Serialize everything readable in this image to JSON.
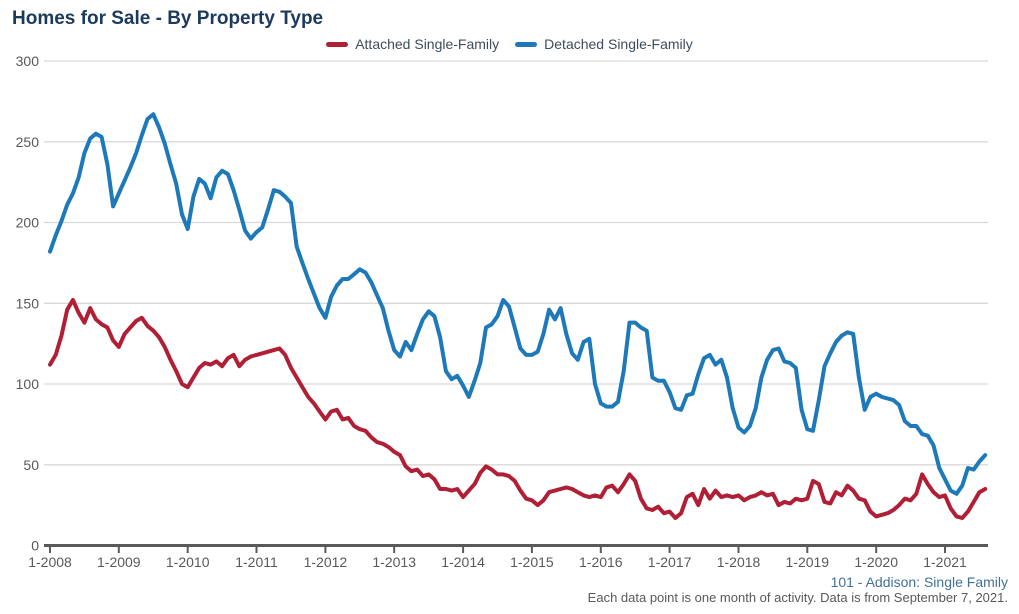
{
  "header": {
    "title": "Homes for Sale - By Property Type"
  },
  "legend": {
    "items": [
      {
        "label": "Attached Single-Family",
        "color": "#b01f35"
      },
      {
        "label": "Detached Single-Family",
        "color": "#1e79b9"
      }
    ]
  },
  "footer": {
    "listing": "101 - Addison: Single Family",
    "note": "Each data point is one month of activity. Data is from September 7, 2021."
  },
  "chart_data": {
    "type": "line",
    "title": "Homes for Sale - By Property Type",
    "xlabel": "",
    "ylabel": "",
    "ylim": [
      0,
      300
    ],
    "y_ticks": [
      0,
      50,
      100,
      150,
      200,
      250,
      300
    ],
    "grid": "horizontal",
    "legend_position": "top",
    "x_unit": "month",
    "x_start": "1-2008",
    "x_end": "8-2021",
    "x_tick_labels": [
      "1-2008",
      "1-2009",
      "1-2010",
      "1-2011",
      "1-2012",
      "1-2013",
      "1-2014",
      "1-2015",
      "1-2016",
      "1-2017",
      "1-2018",
      "1-2019",
      "1-2020",
      "1-2021"
    ],
    "series": [
      {
        "name": "Attached Single-Family",
        "color": "#b01f35",
        "values": [
          112,
          118,
          130,
          146,
          152,
          144,
          138,
          147,
          140,
          137,
          135,
          127,
          123,
          131,
          135,
          139,
          141,
          136,
          133,
          129,
          123,
          115,
          108,
          100,
          98,
          104,
          110,
          113,
          112,
          114,
          111,
          116,
          118,
          111,
          115,
          117,
          118,
          119,
          120,
          121,
          122,
          118,
          110,
          104,
          98,
          92,
          88,
          83,
          78,
          83,
          84,
          78,
          79,
          74,
          72,
          71,
          67,
          64,
          63,
          61,
          58,
          56,
          49,
          46,
          47,
          43,
          44,
          41,
          35,
          35,
          34,
          35,
          30,
          34,
          38,
          45,
          49,
          47,
          44,
          44,
          43,
          40,
          34,
          29,
          28,
          25,
          28,
          33,
          34,
          35,
          36,
          35,
          33,
          31,
          30,
          31,
          30,
          36,
          37,
          33,
          38,
          44,
          40,
          29,
          23,
          22,
          24,
          20,
          21,
          17,
          20,
          30,
          32,
          25,
          35,
          29,
          34,
          30,
          31,
          30,
          31,
          28,
          30,
          31,
          33,
          31,
          32,
          25,
          27,
          26,
          29,
          28,
          29,
          40,
          38,
          27,
          26,
          33,
          31,
          37,
          34,
          29,
          28,
          21,
          18,
          19,
          20,
          22,
          25,
          29,
          28,
          32,
          44,
          38,
          33,
          30,
          31,
          23,
          18,
          17,
          21,
          27,
          33,
          35
        ]
      },
      {
        "name": "Detached Single-Family",
        "color": "#1e79b9",
        "values": [
          182,
          192,
          201,
          211,
          218,
          228,
          243,
          252,
          255,
          253,
          236,
          210,
          218,
          226,
          234,
          243,
          254,
          264,
          267,
          259,
          249,
          236,
          224,
          205,
          196,
          216,
          227,
          224,
          215,
          228,
          232,
          230,
          220,
          208,
          195,
          190,
          194,
          197,
          208,
          220,
          219,
          216,
          212,
          185,
          175,
          165,
          156,
          147,
          141,
          154,
          161,
          165,
          165,
          168,
          171,
          169,
          163,
          155,
          147,
          133,
          121,
          117,
          126,
          121,
          131,
          140,
          145,
          142,
          129,
          108,
          103,
          105,
          99,
          92,
          102,
          113,
          135,
          137,
          142,
          152,
          148,
          135,
          122,
          118,
          118,
          120,
          131,
          146,
          140,
          147,
          131,
          119,
          115,
          126,
          128,
          100,
          88,
          86,
          86,
          89,
          108,
          138,
          138,
          135,
          133,
          104,
          102,
          102,
          95,
          85,
          84,
          93,
          94,
          106,
          116,
          118,
          112,
          115,
          104,
          85,
          73,
          70,
          74,
          85,
          104,
          115,
          121,
          122,
          114,
          113,
          110,
          84,
          72,
          71,
          90,
          111,
          119,
          126,
          130,
          132,
          131,
          104,
          84,
          92,
          94,
          92,
          91,
          90,
          87,
          77,
          74,
          74,
          69,
          68,
          62,
          48,
          41,
          34,
          32,
          37,
          48,
          47,
          52,
          56
        ]
      }
    ]
  }
}
